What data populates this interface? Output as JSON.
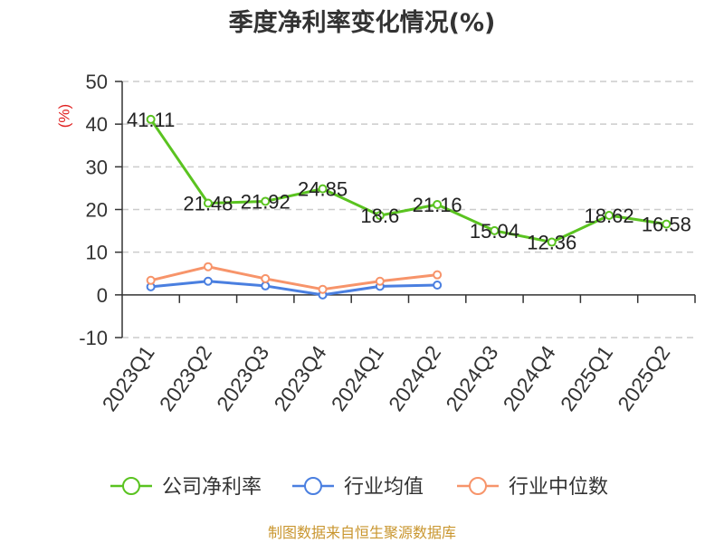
{
  "chart_data": {
    "type": "line",
    "title": "季度净利率变化情况(%)",
    "ylabel": "(%)",
    "ylim": [
      -10,
      50
    ],
    "yticks": [
      -10,
      0,
      10,
      20,
      30,
      40,
      50
    ],
    "grid": true,
    "legend": "bottom",
    "categories": [
      "2023Q1",
      "2023Q2",
      "2023Q3",
      "2023Q4",
      "2024Q1",
      "2024Q2",
      "2024Q3",
      "2024Q4",
      "2025Q1",
      "2025Q2"
    ],
    "series": [
      {
        "name": "公司净利率",
        "color": "#5ac320",
        "data_labels": true,
        "values": [
          41.11,
          21.48,
          21.92,
          24.85,
          18.6,
          21.16,
          15.04,
          12.36,
          18.62,
          16.58
        ]
      },
      {
        "name": "行业均值",
        "color": "#4a7fe0",
        "data_labels": false,
        "values": [
          1.9,
          3.2,
          2.1,
          0.0,
          2.0,
          2.3,
          null,
          null,
          null,
          null
        ]
      },
      {
        "name": "行业中位数",
        "color": "#f7946a",
        "data_labels": false,
        "values": [
          3.4,
          6.6,
          3.8,
          1.3,
          3.2,
          4.7,
          null,
          null,
          null,
          null
        ]
      }
    ]
  },
  "source": "制图数据来自恒生聚源数据库"
}
